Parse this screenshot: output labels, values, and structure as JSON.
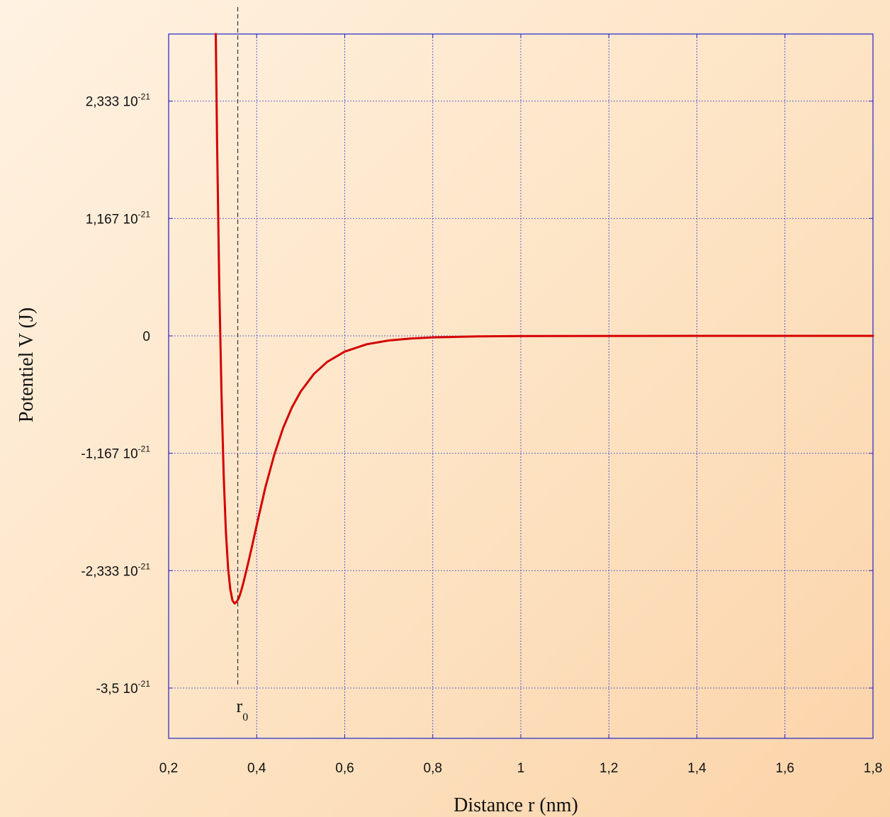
{
  "chart_data": {
    "type": "line",
    "title": "",
    "xlabel": "Distance r (nm)",
    "ylabel": "Potentiel V (J)",
    "xlim": [
      0.2,
      1.8
    ],
    "ylim": [
      -4.0,
      3.0
    ],
    "x_ticks": [
      {
        "value": 0.2,
        "label": "0,2"
      },
      {
        "value": 0.4,
        "label": "0,4"
      },
      {
        "value": 0.6,
        "label": "0,6"
      },
      {
        "value": 0.8,
        "label": "0,8"
      },
      {
        "value": 1.0,
        "label": "1"
      },
      {
        "value": 1.2,
        "label": "1,2"
      },
      {
        "value": 1.4,
        "label": "1,4"
      },
      {
        "value": 1.6,
        "label": "1,6"
      },
      {
        "value": 1.8,
        "label": "1,8"
      }
    ],
    "y_ticks": [
      {
        "value": 2.333,
        "mantissa": "2,333 10",
        "exponent": "-21"
      },
      {
        "value": 1.167,
        "mantissa": "1,167 10",
        "exponent": "-21"
      },
      {
        "value": 0,
        "mantissa": "0",
        "exponent": ""
      },
      {
        "value": -1.167,
        "mantissa": "-1,167 10",
        "exponent": "-21"
      },
      {
        "value": -2.333,
        "mantissa": "-2,333 10",
        "exponent": "-21"
      },
      {
        "value": -3.5,
        "mantissa": "-3,5 10",
        "exponent": "-21"
      }
    ],
    "y_unit_multiplier": "10^-21",
    "grid": true,
    "series": [
      {
        "color": "#d40000",
        "x": [
          0.307,
          0.31,
          0.315,
          0.32,
          0.325,
          0.33,
          0.335,
          0.34,
          0.345,
          0.35,
          0.355,
          0.36,
          0.365,
          0.37,
          0.38,
          0.39,
          0.4,
          0.42,
          0.44,
          0.46,
          0.48,
          0.5,
          0.53,
          0.56,
          0.6,
          0.65,
          0.7,
          0.75,
          0.8,
          0.9,
          1.0,
          1.2,
          1.4,
          1.6,
          1.8
        ],
        "y": [
          3.0,
          1.95,
          0.51,
          -0.58,
          -1.39,
          -1.95,
          -2.31,
          -2.52,
          -2.63,
          -2.66,
          -2.64,
          -2.6,
          -2.53,
          -2.45,
          -2.27,
          -2.08,
          -1.88,
          -1.5,
          -1.18,
          -0.917,
          -0.712,
          -0.553,
          -0.378,
          -0.259,
          -0.156,
          -0.083,
          -0.046,
          -0.026,
          -0.015,
          -0.0054,
          -0.0021,
          -0.0004,
          -0.0001,
          0.0,
          0.0
        ]
      }
    ],
    "annotations": [
      {
        "type": "vline",
        "x": 0.357,
        "style": "dashed",
        "label": "r",
        "subscript": "0"
      }
    ]
  }
}
